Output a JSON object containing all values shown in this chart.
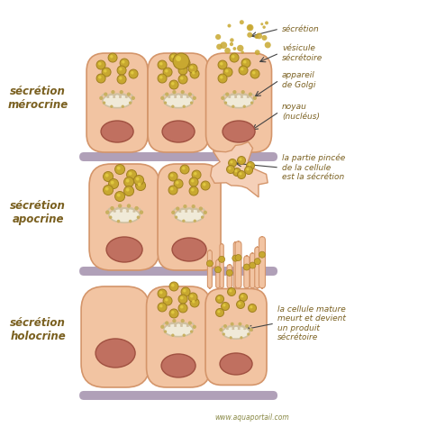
{
  "bg_color": "#ffffff",
  "cell_fill": "#f2c4a2",
  "cell_fill_light": "#f5d0b8",
  "cell_edge": "#d4956a",
  "cell_edge2": "#c88060",
  "nucleus_fill": "#c07060",
  "nucleus_edge": "#a05040",
  "golgi_arc_color": "#d0c0a0",
  "golgi_dot_color": "#c8b060",
  "vesicle_fill": "#c8a830",
  "vesicle_edge": "#a08020",
  "vesicle_inner": "#e0c840",
  "base_color": "#b0a0b8",
  "label_color": "#7a6020",
  "arrow_color": "#444444",
  "dot_color": "#c8a830",
  "watermark": "www.aquaportail.com",
  "row_labels": [
    "sécrétion\nmérocrine",
    "sécrétion\napocrine",
    "sécrétion\nholocrine"
  ],
  "ann_row0": [
    "sécrétion",
    "vésicule\nsécrétoire",
    "appareil\nde Golgi",
    "noyau\n(nucléus)"
  ],
  "ann_row1": [
    "la partie pincée\nde la cellule\nest la sécrétion"
  ],
  "ann_row2": [
    "la cellule mature\nmeurt et devient\nun produit\nsécrétoire"
  ]
}
